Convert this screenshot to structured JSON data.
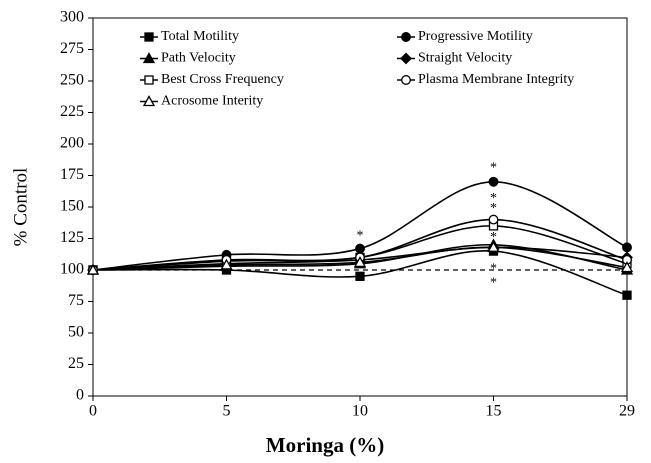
{
  "chart_data": {
    "type": "line",
    "x_label": "Moringa (%)",
    "y_label": "% Control",
    "categories": [
      "0",
      "5",
      "10",
      "15",
      "29"
    ],
    "ylim": [
      0,
      300
    ],
    "yticks": [
      0,
      25,
      50,
      75,
      100,
      125,
      150,
      175,
      200,
      225,
      250,
      275,
      300
    ],
    "smooth": true,
    "reference_line": 100,
    "series": [
      {
        "name": "Total Motility",
        "color": "#000000",
        "marker": "square-filled",
        "values": [
          100,
          100,
          95,
          115,
          80
        ]
      },
      {
        "name": "Progressive Motility",
        "color": "#000000",
        "marker": "circle-filled",
        "values": [
          100,
          112,
          117,
          170,
          118
        ]
      },
      {
        "name": "Path Velocity",
        "color": "#000000",
        "marker": "triangle-filled",
        "values": [
          100,
          103,
          105,
          120,
          100
        ]
      },
      {
        "name": "Straight Velocity",
        "color": "#000000",
        "marker": "diamond-filled",
        "values": [
          100,
          105,
          108,
          118,
          110
        ]
      },
      {
        "name": "Best Cross Frequency",
        "color": "#000000",
        "marker": "square-open",
        "values": [
          100,
          107,
          110,
          135,
          105
        ]
      },
      {
        "name": "Plasma Membrane Integrity",
        "color": "#000000",
        "marker": "circle-open",
        "values": [
          100,
          108,
          110,
          140,
          108
        ]
      },
      {
        "name": "Acrosome Interity",
        "color": "#000000",
        "marker": "triangle-open",
        "values": [
          100,
          104,
          106,
          118,
          102
        ]
      }
    ],
    "annotations": [
      {
        "text": "*",
        "x": "10",
        "y": 129
      },
      {
        "text": "*",
        "x": "15",
        "y": 183
      },
      {
        "text": "*",
        "x": "15",
        "y": 159
      },
      {
        "text": "*",
        "x": "15",
        "y": 151
      },
      {
        "text": "*",
        "x": "15",
        "y": 128
      },
      {
        "text": "*",
        "x": "15",
        "y": 103
      },
      {
        "text": "*",
        "x": "15",
        "y": 92
      }
    ]
  }
}
